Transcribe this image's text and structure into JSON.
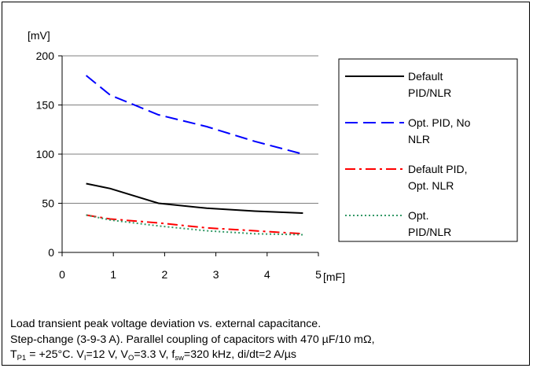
{
  "chart_data": {
    "type": "line",
    "ylabel": "[mV]",
    "xlabel": "[mF]",
    "xlim": [
      0,
      5
    ],
    "ylim": [
      0,
      200
    ],
    "x_ticks": [
      "0",
      "1",
      "2",
      "3",
      "4",
      "5"
    ],
    "y_ticks": [
      "0",
      "50",
      "100",
      "150",
      "200"
    ],
    "grid": "horizontal",
    "legend_position": "right",
    "series": [
      {
        "name": "Default PID/NLR",
        "legend_lines": [
          "Default",
          "PID/NLR"
        ],
        "color": "#000000",
        "style": "solid",
        "x": [
          0.47,
          0.94,
          1.88,
          2.82,
          3.76,
          4.7
        ],
        "y": [
          70,
          65,
          50,
          45,
          42,
          40
        ]
      },
      {
        "name": "Opt. PID, No NLR",
        "legend_lines": [
          "Opt. PID, No",
          "NLR"
        ],
        "color": "#0000ff",
        "style": "dashed",
        "x": [
          0.47,
          0.94,
          1.88,
          2.82,
          3.76,
          4.7
        ],
        "y": [
          180,
          160,
          140,
          128,
          113,
          100
        ]
      },
      {
        "name": "Default PID, Opt. NLR",
        "legend_lines": [
          "Default PID,",
          "Opt. NLR"
        ],
        "color": "#ff0000",
        "style": "dashdot",
        "x": [
          0.47,
          0.94,
          1.88,
          2.82,
          3.76,
          4.7
        ],
        "y": [
          38,
          34,
          30,
          25,
          22,
          19
        ]
      },
      {
        "name": "Opt. PID/NLR",
        "legend_lines": [
          "Opt.",
          "PID/NLR"
        ],
        "color": "#339966",
        "style": "dotted",
        "x": [
          0.47,
          0.94,
          1.88,
          2.82,
          3.76,
          4.7
        ],
        "y": [
          38,
          33,
          27,
          22,
          19,
          18
        ]
      }
    ]
  },
  "caption": {
    "line1": "Load transient peak voltage deviation vs. external capacitance.",
    "line2": "Step-change (3-9-3 A). Parallel coupling of capacitors with 470 µF/10 mΩ,",
    "line3_a": "T",
    "line3_a_sub": "P1",
    "line3_b": " = +25°C. V",
    "line3_b_sub": "I",
    "line3_c": "=12 V, V",
    "line3_c_sub": "O",
    "line3_d": "=3.3 V, f",
    "line3_d_sub": "sw",
    "line3_e": "=320 kHz, di/dt=2 A/µs"
  }
}
